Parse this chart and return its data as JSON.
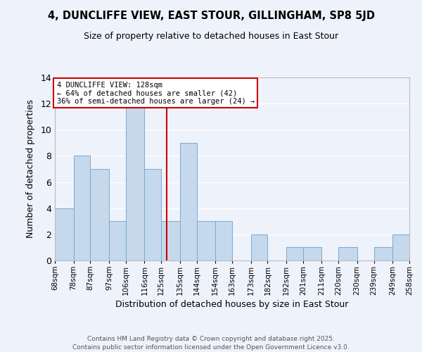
{
  "title": "4, DUNCLIFFE VIEW, EAST STOUR, GILLINGHAM, SP8 5JD",
  "subtitle": "Size of property relative to detached houses in East Stour",
  "xlabel": "Distribution of detached houses by size in East Stour",
  "ylabel": "Number of detached properties",
  "bar_color": "#c5d8ec",
  "bar_edge_color": "#7aaad0",
  "background_color": "#eef2fb",
  "grid_color": "#ffffff",
  "vline_color": "#cc0000",
  "vline_x": 128,
  "annotation_title": "4 DUNCLIFFE VIEW: 128sqm",
  "annotation_line1": "← 64% of detached houses are smaller (42)",
  "annotation_line2": "36% of semi-detached houses are larger (24) →",
  "annotation_box_color": "#ffffff",
  "annotation_box_edge": "#cc0000",
  "bin_edges": [
    68,
    78,
    87,
    97,
    106,
    116,
    125,
    135,
    144,
    154,
    163,
    173,
    182,
    192,
    201,
    211,
    220,
    230,
    239,
    249,
    258
  ],
  "bin_labels": [
    "68sqm",
    "78sqm",
    "87sqm",
    "97sqm",
    "106sqm",
    "116sqm",
    "125sqm",
    "135sqm",
    "144sqm",
    "154sqm",
    "163sqm",
    "173sqm",
    "182sqm",
    "192sqm",
    "201sqm",
    "211sqm",
    "220sqm",
    "230sqm",
    "239sqm",
    "249sqm",
    "258sqm"
  ],
  "counts": [
    4,
    8,
    7,
    3,
    12,
    7,
    3,
    9,
    3,
    3,
    0,
    2,
    0,
    1,
    1,
    0,
    1,
    0,
    1,
    2
  ],
  "ylim": [
    0,
    14
  ],
  "yticks": [
    0,
    2,
    4,
    6,
    8,
    10,
    12,
    14
  ],
  "footer1": "Contains HM Land Registry data © Crown copyright and database right 2025.",
  "footer2": "Contains public sector information licensed under the Open Government Licence v3.0."
}
